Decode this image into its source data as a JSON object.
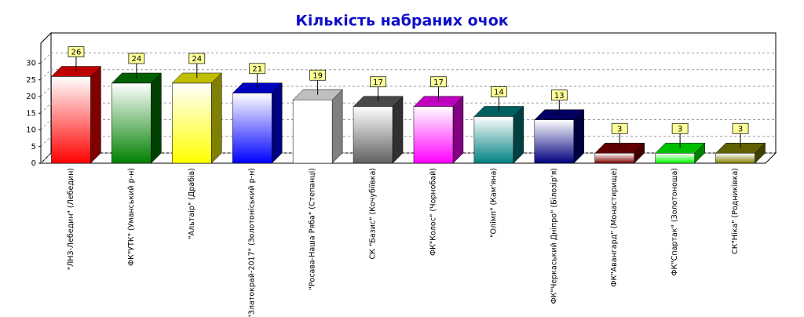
{
  "chart_data": {
    "type": "bar3d",
    "title": "Кількість набраних очок",
    "categories": [
      "\"ЛНЗ-Лебедин\" (Лебедин)",
      "ФК\"УТК\" (Уманський р-н)",
      "\"Альтаір\" (Драбів)",
      "\"Златокрай-2017\" (Золотоніський р-н)",
      "\"Росава-Наша Ряба\" (Степанці)",
      "СК \"Базис\" (Кочубіївка)",
      "ФК\"Колос\" (Чорнобай)",
      "\"Олімп\" (Кам'яна)",
      "ФК\"Черкаський Дніпро\" (Білозір'я)",
      "ФК\"Авангард\" (Монастирище)",
      "ФК\"Спартак\" (Золотоноша)",
      "СК\"Ніка\" (Родниківка)"
    ],
    "values": [
      26,
      24,
      24,
      21,
      19,
      17,
      17,
      14,
      13,
      3,
      3,
      3
    ],
    "colors": [
      "#ff0000",
      "#008000",
      "#ffff00",
      "#0000ff",
      "#ffffff",
      "#606060",
      "#ff00ff",
      "#008080",
      "#000080",
      "#800000",
      "#00ff00",
      "#808000"
    ],
    "ylim": [
      0,
      36
    ],
    "yticks": [
      0,
      5,
      10,
      15,
      20,
      25,
      30
    ],
    "grid": true
  }
}
